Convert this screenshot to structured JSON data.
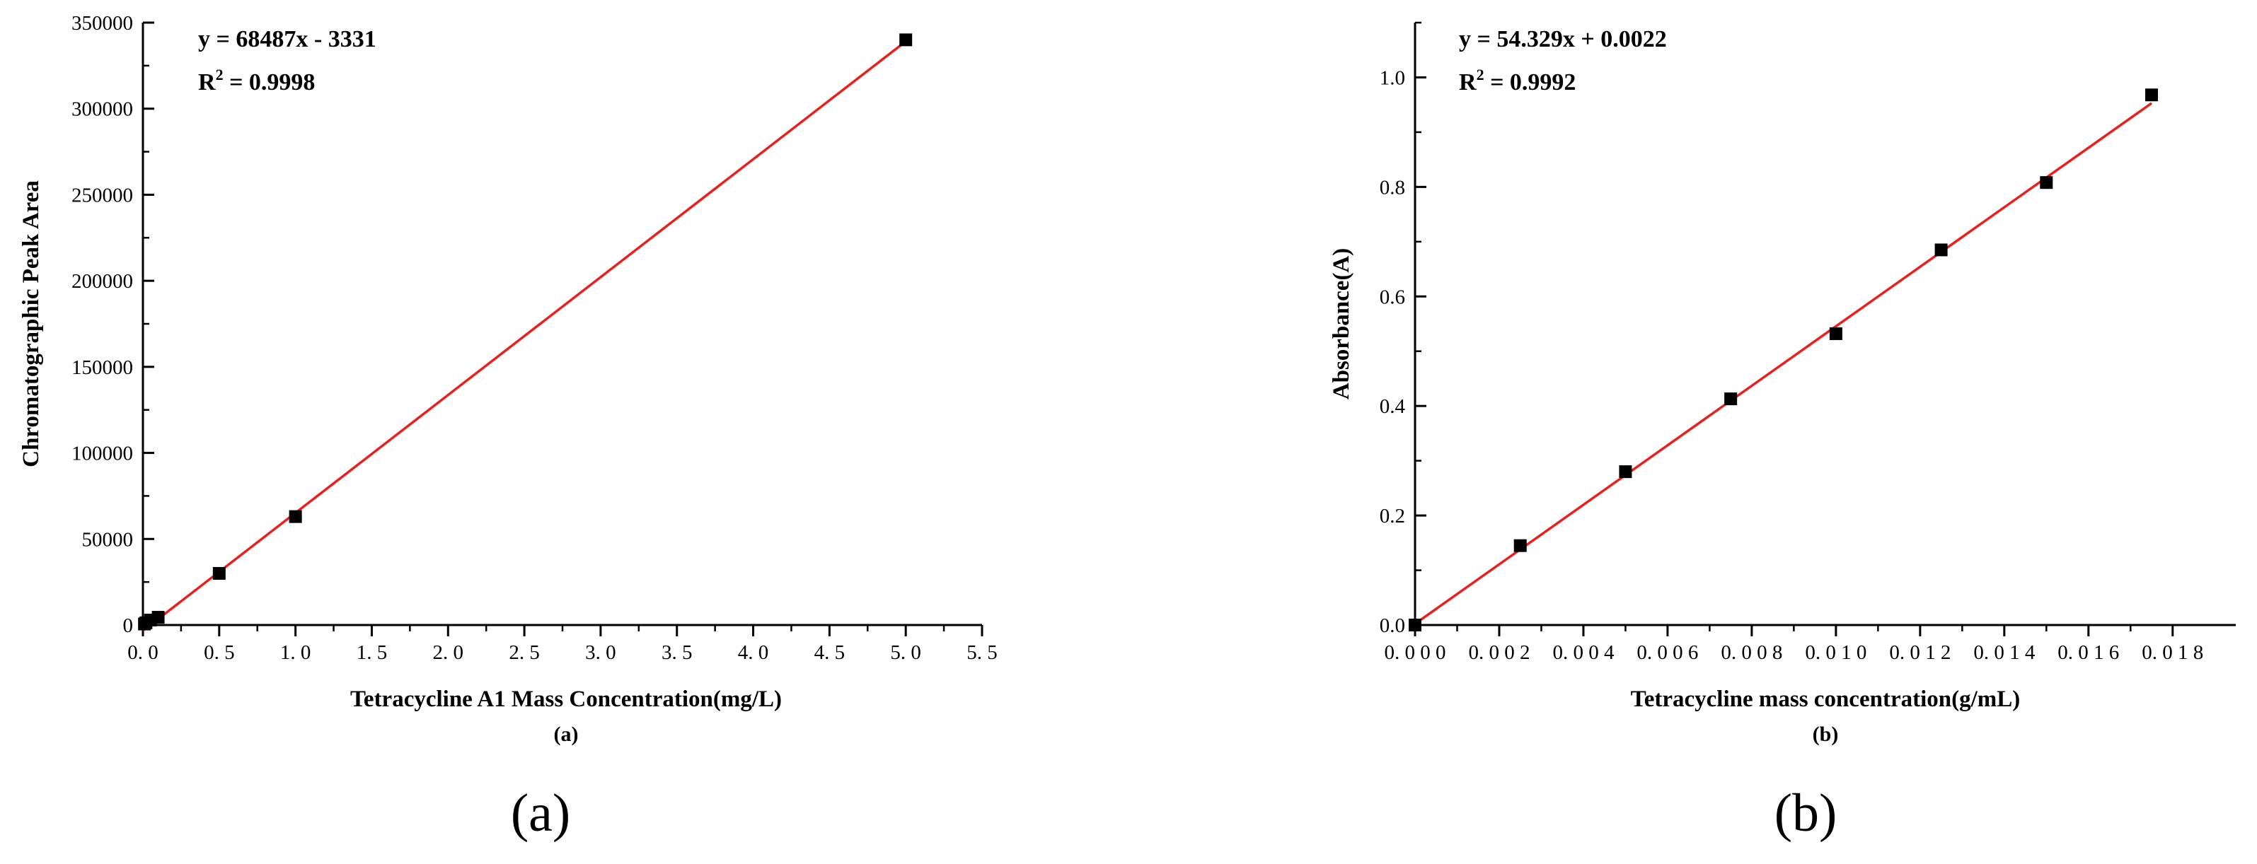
{
  "chart_data": [
    {
      "type": "scatter",
      "panel_label": "(a)",
      "sub_caption": "(a)",
      "xlabel": "Tetracycline A1 Mass Concentration(mg/L)",
      "ylabel": "Chromatographic Peak Area",
      "xlim": [
        0,
        5.5
      ],
      "ylim": [
        0,
        350000
      ],
      "xticks": [
        "0.0",
        "0.5",
        "1.0",
        "1.5",
        "2.0",
        "2.5",
        "3.0",
        "3.5",
        "4.0",
        "4.5",
        "5.0",
        "5.5"
      ],
      "yticks": [
        "0",
        "50000",
        "100000",
        "150000",
        "200000",
        "250000",
        "300000",
        "350000"
      ],
      "points": [
        {
          "x": 0.01,
          "y": 600
        },
        {
          "x": 0.02,
          "y": 1300
        },
        {
          "x": 0.05,
          "y": 2900
        },
        {
          "x": 0.1,
          "y": 4500
        },
        {
          "x": 0.5,
          "y": 30000
        },
        {
          "x": 1.0,
          "y": 63000
        },
        {
          "x": 5.0,
          "y": 340000
        }
      ],
      "fit": {
        "slope": 68487,
        "intercept": -3331,
        "x_range": [
          0,
          5.0
        ],
        "color": "#e8201e"
      },
      "equation": "y = 68487x - 3331",
      "r2_prefix": "R",
      "r2_sup": "2",
      "r2_value": " = 0.9998",
      "grid": false
    },
    {
      "type": "scatter",
      "panel_label": "(b)",
      "sub_caption": "(b)",
      "xlabel": "Tetracycline mass concentration(g/mL)",
      "ylabel": "Absorbance(A)",
      "xlim": [
        0,
        0.0195
      ],
      "ylim": [
        0,
        1.1
      ],
      "xticks": [
        "0.000",
        "0.002",
        "0.004",
        "0.006",
        "0.008",
        "0.010",
        "0.012",
        "0.014",
        "0.016",
        "0.018"
      ],
      "yticks": [
        "0.0",
        "0.2",
        "0.4",
        "0.6",
        "0.8",
        "1.0"
      ],
      "points": [
        {
          "x": 0.0,
          "y": 0.0
        },
        {
          "x": 0.0025,
          "y": 0.145
        },
        {
          "x": 0.005,
          "y": 0.28
        },
        {
          "x": 0.0075,
          "y": 0.413
        },
        {
          "x": 0.01,
          "y": 0.532
        },
        {
          "x": 0.0125,
          "y": 0.685
        },
        {
          "x": 0.015,
          "y": 0.808
        },
        {
          "x": 0.0175,
          "y": 0.968
        }
      ],
      "fit": {
        "slope": 54.329,
        "intercept": 0.0022,
        "x_range": [
          0,
          0.0175
        ],
        "color": "#e8201e"
      },
      "equation": "y = 54.329x + 0.0022",
      "r2_prefix": "R",
      "r2_sup": "2",
      "r2_value": " = 0.9992",
      "grid": false
    }
  ]
}
